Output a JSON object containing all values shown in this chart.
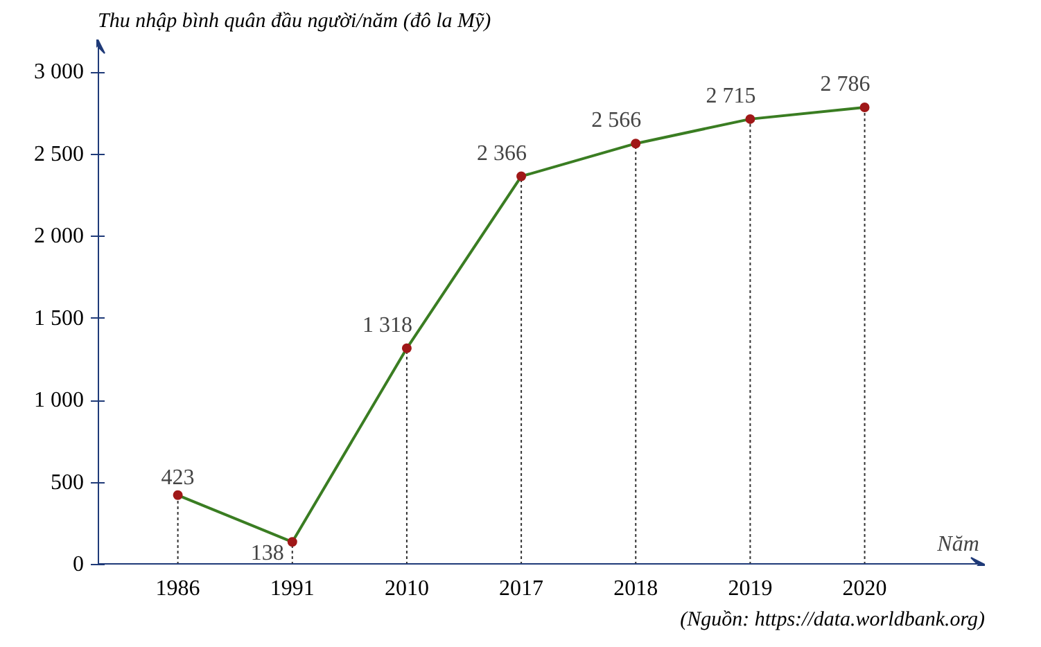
{
  "chart_data": {
    "type": "line",
    "ylabel": "Thu nhập bình quân đầu người/năm (đô la Mỹ)",
    "xlabel": "Năm",
    "annotations": [
      "(Nguồn: https://data.worldbank.org)"
    ],
    "categories": [
      "1986",
      "1991",
      "2010",
      "2017",
      "2018",
      "2019",
      "2020"
    ],
    "series": [
      {
        "color": "#3a7d22",
        "values": [
          423,
          138,
          1318,
          2366,
          2566,
          2715,
          2786
        ],
        "value_labels": [
          "423",
          "138",
          "1 318",
          "2 366",
          "2 566",
          "2 715",
          "2 786"
        ]
      }
    ],
    "ylim": [
      0,
      3200
    ],
    "yticks": [
      0,
      500,
      {
        "value": 1000,
        "label": "1 000"
      },
      {
        "value": 1500,
        "label": "1 500"
      },
      {
        "value": 2000,
        "label": "2 000"
      },
      {
        "value": 2500,
        "label": "2 500"
      },
      {
        "value": 3000,
        "label": "3 000"
      }
    ],
    "marker": "circle",
    "line_style": "solid",
    "grid": "x"
  }
}
